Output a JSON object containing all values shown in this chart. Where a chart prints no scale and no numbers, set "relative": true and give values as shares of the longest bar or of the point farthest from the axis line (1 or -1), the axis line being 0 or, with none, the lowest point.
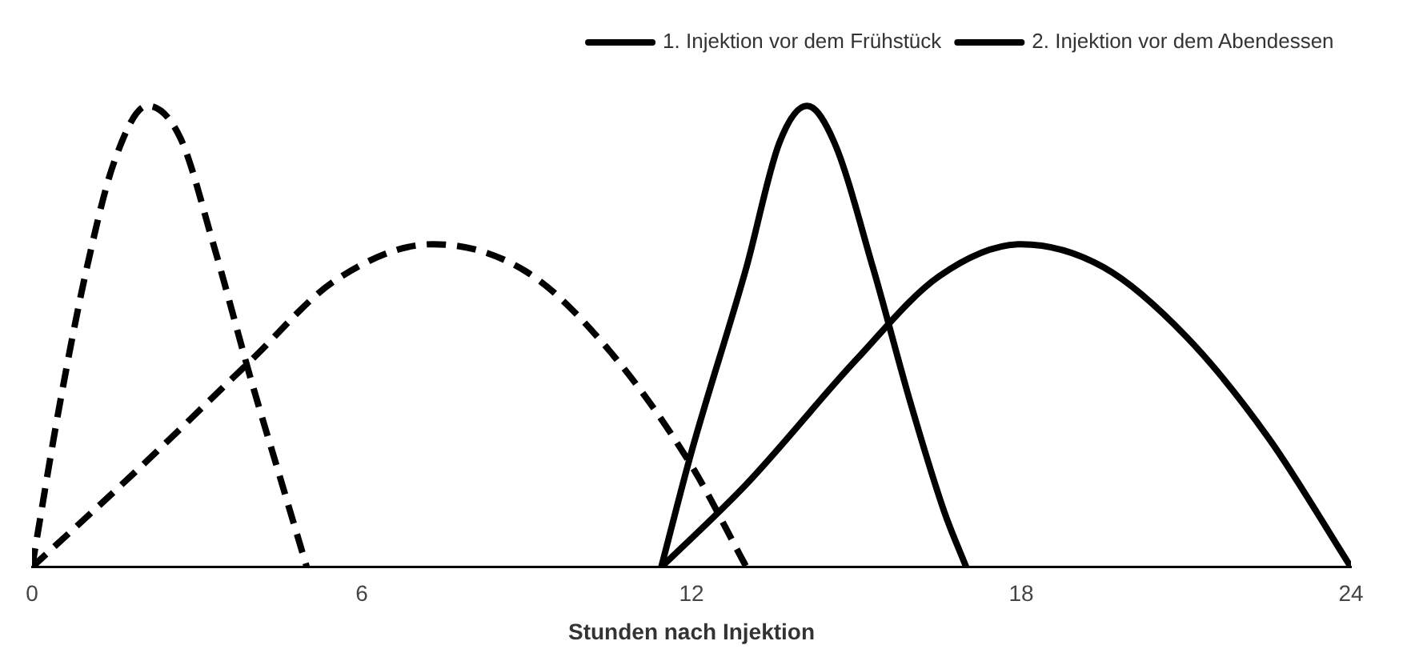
{
  "chart_data": {
    "type": "line",
    "xlabel": "Stunden nach Injektion",
    "xlim": [
      0,
      24
    ],
    "xticks": [
      0,
      6,
      12,
      18,
      24
    ],
    "relative": true,
    "grid": false,
    "legend": "top right",
    "marker": "none",
    "series": [
      {
        "name": "1. Injektion vor dem Frühstück",
        "color": "#000000",
        "line_style": "dashed",
        "x": [
          0,
          0.5,
          1,
          1.5,
          2.1,
          2.7,
          3.3,
          4,
          4.5,
          5
        ],
        "values": [
          0,
          0.35,
          0.65,
          0.88,
          1,
          0.93,
          0.7,
          0.4,
          0.2,
          0
        ]
      },
      {
        "color": "#000000",
        "line_style": "dashed",
        "x": [
          0,
          2,
          4,
          5.5,
          7.3,
          9,
          10.5,
          12,
          13
        ],
        "values": [
          0,
          0.22,
          0.45,
          0.62,
          0.7,
          0.64,
          0.47,
          0.22,
          0
        ]
      },
      {
        "name": "2. Injektion vor dem Abendessen",
        "color": "#000000",
        "line_style": "solid",
        "x": [
          11.45,
          12,
          13,
          13.6,
          14.1,
          14.6,
          15.3,
          16,
          16.6,
          17
        ],
        "values": [
          0,
          0.25,
          0.65,
          0.92,
          1,
          0.92,
          0.65,
          0.35,
          0.12,
          0
        ]
      },
      {
        "color": "#000000",
        "line_style": "solid",
        "x": [
          11.45,
          13,
          15,
          16.5,
          18,
          19.5,
          21,
          22.5,
          24
        ],
        "values": [
          0,
          0.18,
          0.45,
          0.63,
          0.7,
          0.65,
          0.5,
          0.28,
          0
        ]
      }
    ]
  }
}
